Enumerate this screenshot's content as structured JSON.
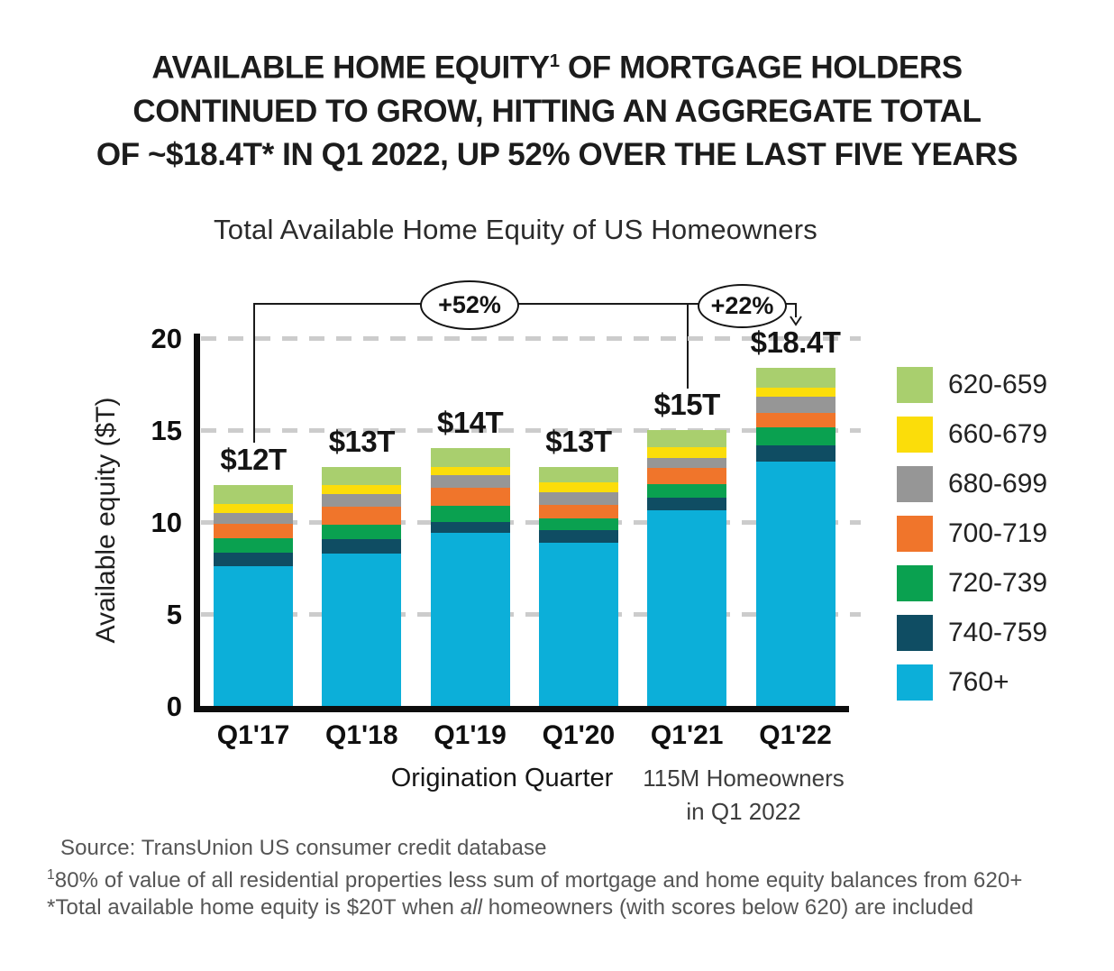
{
  "header": {
    "title_line1_pre": "AVAILABLE HOME EQUITY",
    "title_line1_sup": "1",
    "title_line1_post": " OF MORTGAGE HOLDERS",
    "title_line2": "CONTINUED TO GROW, HITTING AN AGGREGATE TOTAL",
    "title_line3": "OF ~$18.4T* IN Q1 2022, UP 52% OVER THE LAST FIVE YEARS"
  },
  "chart": {
    "subtitle": "Total Available Home Equity of US Homeowners",
    "ylabel": "Available equity ($T)",
    "xlabel": "Origination Quarter",
    "note_line1": "115M Homeowners",
    "note_line2": "in Q1 2022",
    "annotation_growth_5yr": "+52%",
    "annotation_growth_1yr": "+22%"
  },
  "chart_data": {
    "type": "bar",
    "stacked": true,
    "title": "Total Available Home Equity of US Homeowners",
    "xlabel": "Origination Quarter",
    "ylabel": "Available equity ($T)",
    "ylim": [
      0,
      20
    ],
    "yticks": [
      0,
      5,
      10,
      15,
      20
    ],
    "grid": "horizontal-dashed",
    "legend_position": "right",
    "categories": [
      "Q1'17",
      "Q1'18",
      "Q1'19",
      "Q1'20",
      "Q1'21",
      "Q1'22"
    ],
    "totals": [
      12,
      13,
      14,
      13,
      15,
      18.4
    ],
    "totals_labels": [
      "$12T",
      "$13T",
      "$14T",
      "$13T",
      "$15T",
      "$18.4T"
    ],
    "series": [
      {
        "name": "760+",
        "color": "#0cafd9",
        "values": [
          7.6,
          8.3,
          9.4,
          8.85,
          10.65,
          13.3
        ]
      },
      {
        "name": "740-759",
        "color": "#0f4d63",
        "values": [
          0.75,
          0.75,
          0.6,
          0.7,
          0.65,
          0.85
        ]
      },
      {
        "name": "720-739",
        "color": "#0aa150",
        "values": [
          0.75,
          0.8,
          0.9,
          0.65,
          0.75,
          1.0
        ]
      },
      {
        "name": "700-719",
        "color": "#f0752b",
        "values": [
          0.8,
          1.0,
          0.95,
          0.75,
          0.9,
          0.8
        ]
      },
      {
        "name": "680-699",
        "color": "#969696",
        "values": [
          0.6,
          0.65,
          0.7,
          0.65,
          0.55,
          0.85
        ]
      },
      {
        "name": "660-679",
        "color": "#fbdd0a",
        "values": [
          0.5,
          0.5,
          0.45,
          0.55,
          0.55,
          0.5
        ]
      },
      {
        "name": "620-659",
        "color": "#a9cf6e",
        "values": [
          1.0,
          1.0,
          1.0,
          0.85,
          0.95,
          1.1
        ]
      }
    ],
    "annotations": [
      {
        "label": "+52%",
        "from": "Q1'17",
        "to": "Q1'22"
      },
      {
        "label": "+22%",
        "from": "Q1'21",
        "to": "Q1'22"
      }
    ]
  },
  "footer": {
    "source": "Source: TransUnion US consumer credit database",
    "footnote1_sup": "1",
    "footnote1_text": "80% of value of all residential properties less sum of mortgage and home equity balances from 620+",
    "footnote2_pre": "*Total available home equity is $20T when ",
    "footnote2_italic": "all",
    "footnote2_post": " homeowners (with scores below 620) are included"
  }
}
